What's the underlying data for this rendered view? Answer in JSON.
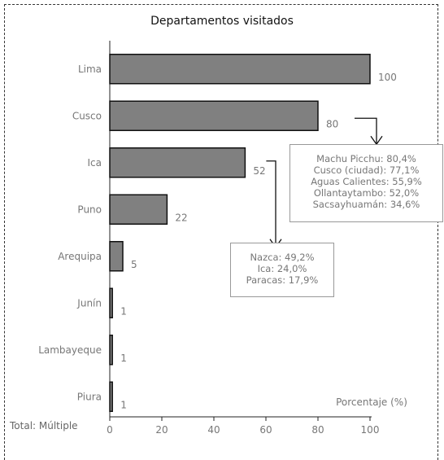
{
  "chart_data": {
    "type": "bar",
    "orientation": "horizontal",
    "title": "Departamentos visitados",
    "xlabel": "Porcentaje (%)",
    "footer": "Total: Múltiple",
    "categories": [
      "Lima",
      "Cusco",
      "Ica",
      "Puno",
      "Arequipa",
      "Junín",
      "Lambayeque",
      "Piura"
    ],
    "values": [
      100,
      80,
      52,
      22,
      5,
      1,
      1,
      1
    ],
    "xlim": [
      0,
      100
    ],
    "xticks": [
      "0",
      "20",
      "40",
      "60",
      "80",
      "100"
    ],
    "bar_color": "#808080",
    "grid": false,
    "annotations": [
      {
        "target": "Cusco",
        "lines": [
          "Machu Picchu: 80,4%",
          "Cusco (ciudad): 77,1%",
          "Aguas Calientes: 55,9%",
          "Ollantaytambo: 52,0%",
          "Sacsayhuamán: 34,6%"
        ]
      },
      {
        "target": "Ica",
        "lines": [
          "Nazca: 49,2%",
          "Ica: 24,0%",
          "Paracas: 17,9%"
        ]
      }
    ]
  }
}
